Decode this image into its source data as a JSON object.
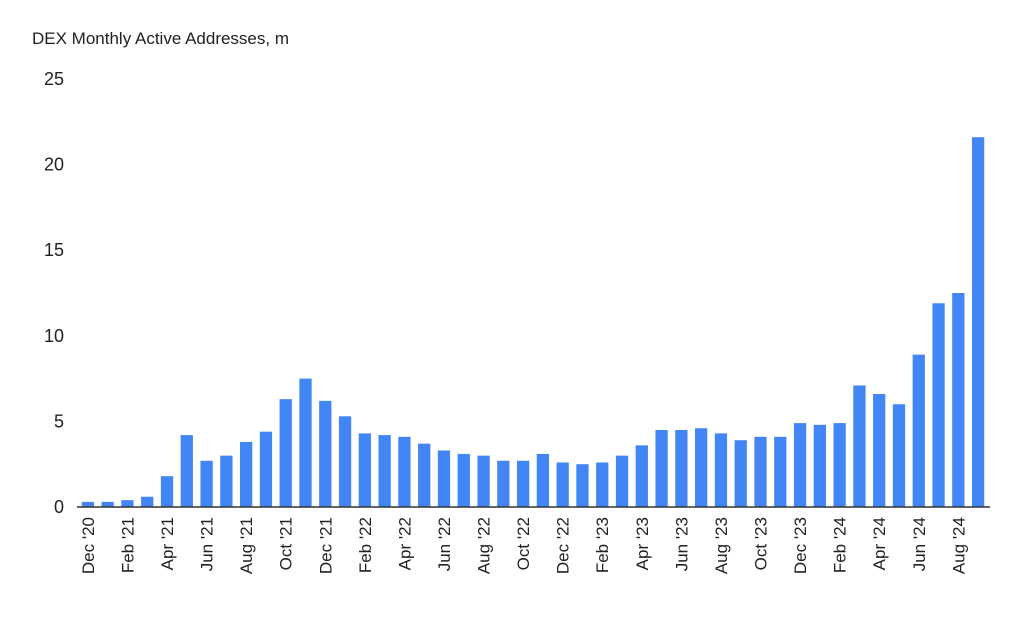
{
  "chart_data": {
    "type": "bar",
    "title": "DEX Monthly Active Addresses, m",
    "xlabel": "",
    "ylabel": "",
    "ylim": [
      0,
      25
    ],
    "yticks": [
      0,
      5,
      10,
      15,
      20,
      25
    ],
    "grid": false,
    "legend": "none",
    "bar_color": "#4285f4",
    "categories": [
      "Dec '20",
      "Jan '21",
      "Feb '21",
      "Mar '21",
      "Apr '21",
      "May '21",
      "Jun '21",
      "Jul '21",
      "Aug '21",
      "Sep '21",
      "Oct '21",
      "Nov '21",
      "Dec '21",
      "Jan '22",
      "Feb '22",
      "Mar '22",
      "Apr '22",
      "May '22",
      "Jun '22",
      "Jul '22",
      "Aug '22",
      "Sep '22",
      "Oct '22",
      "Nov '22",
      "Dec '22",
      "Jan '23",
      "Feb '23",
      "Mar '23",
      "Apr '23",
      "May '23",
      "Jun '23",
      "Jul '23",
      "Aug '23",
      "Sep '23",
      "Oct '23",
      "Nov '23",
      "Dec '23",
      "Jan '24",
      "Feb '24",
      "Mar '24",
      "Apr '24",
      "May '24",
      "Jun '24",
      "Jul '24",
      "Aug '24",
      "Sep '24"
    ],
    "visible_tick_labels": [
      "Dec '20",
      "Feb '21",
      "Apr '21",
      "Jun '21",
      "Aug '21",
      "Oct '21",
      "Dec '21",
      "Feb '22",
      "Apr '22",
      "Jun '22",
      "Aug '22",
      "Oct '22",
      "Dec '22",
      "Feb '23",
      "Apr '23",
      "Jun '23",
      "Aug '23",
      "Oct '23",
      "Dec '23",
      "Feb '24",
      "Apr '24",
      "Jun '24",
      "Aug '24"
    ],
    "values": [
      0.3,
      0.3,
      0.4,
      0.6,
      1.8,
      4.2,
      2.7,
      3.0,
      3.8,
      4.4,
      6.3,
      7.5,
      6.2,
      5.3,
      4.3,
      4.2,
      4.1,
      3.7,
      3.3,
      3.1,
      3.0,
      2.7,
      2.7,
      3.1,
      2.6,
      2.5,
      2.6,
      3.0,
      3.6,
      4.5,
      4.5,
      4.6,
      4.3,
      3.9,
      4.1,
      4.1,
      4.9,
      4.8,
      4.9,
      7.1,
      6.6,
      6.0,
      8.9,
      11.9,
      12.5,
      21.6
    ]
  }
}
